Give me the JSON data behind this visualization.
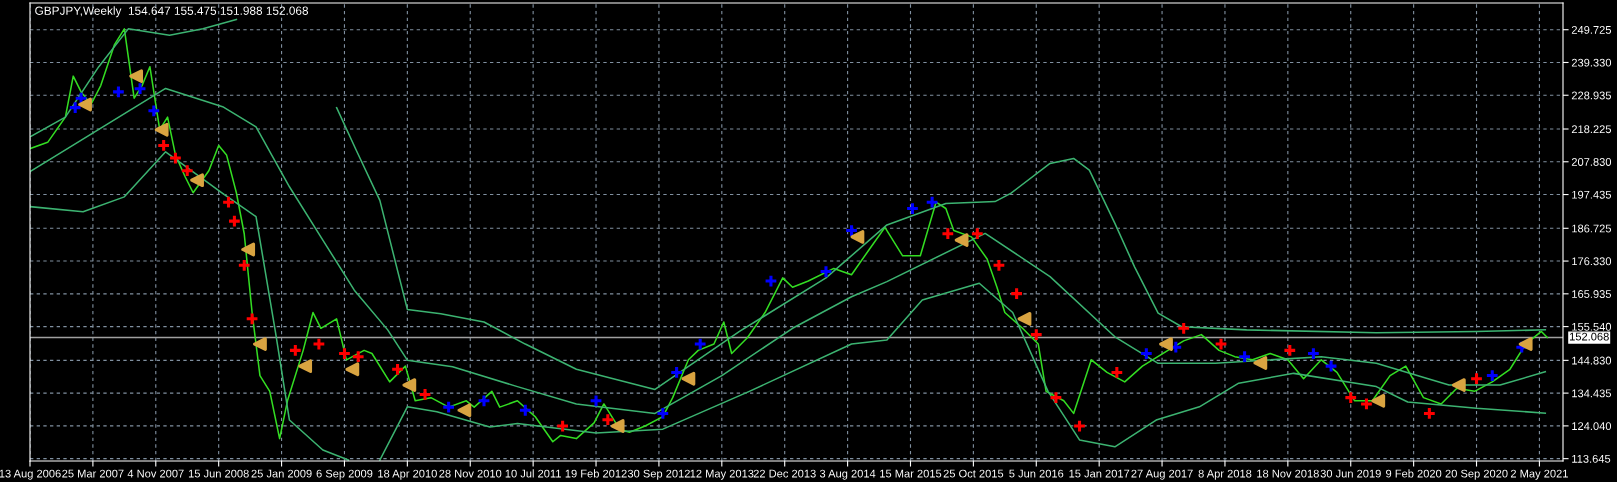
{
  "chart_data": {
    "type": "line",
    "title": "GBPJPY,Weekly  154.647 155.475 151.988 152.068",
    "xlim": [
      "2006-08-13",
      "2021-07-25"
    ],
    "ylim": [
      112.9,
      258.2
    ],
    "xticks": [
      {
        "value": "2006-08-13",
        "label": "13 Aug 2006"
      },
      {
        "value": "2007-03-25",
        "label": "25 Mar 2007"
      },
      {
        "value": "2007-11-04",
        "label": "4 Nov 2007"
      },
      {
        "value": "2008-06-15",
        "label": "15 Jun 2008"
      },
      {
        "value": "2009-01-25",
        "label": "25 Jan 2009"
      },
      {
        "value": "2009-09-06",
        "label": "6 Sep 2009"
      },
      {
        "value": "2010-04-18",
        "label": "18 Apr 2010"
      },
      {
        "value": "2010-11-28",
        "label": "28 Nov 2010"
      },
      {
        "value": "2011-07-10",
        "label": "10 Jul 2011"
      },
      {
        "value": "2012-02-19",
        "label": "19 Feb 2012"
      },
      {
        "value": "2012-09-30",
        "label": "30 Sep 2012"
      },
      {
        "value": "2013-05-12",
        "label": "12 May 2013"
      },
      {
        "value": "2013-12-22",
        "label": "22 Dec 2013"
      },
      {
        "value": "2014-08-03",
        "label": "3 Aug 2014"
      },
      {
        "value": "2015-03-15",
        "label": "15 Mar 2015"
      },
      {
        "value": "2015-10-25",
        "label": "25 Oct 2015"
      },
      {
        "value": "2016-06-05",
        "label": "5 Jun 2016"
      },
      {
        "value": "2017-01-15",
        "label": "15 Jan 2017"
      },
      {
        "value": "2017-08-27",
        "label": "27 Aug 2017"
      },
      {
        "value": "2018-04-08",
        "label": "8 Apr 2018"
      },
      {
        "value": "2018-11-18",
        "label": "18 Nov 2018"
      },
      {
        "value": "2019-06-30",
        "label": "30 Jun 2019"
      },
      {
        "value": "2020-02-09",
        "label": "9 Feb 2020"
      },
      {
        "value": "2020-09-20",
        "label": "20 Sep 2020"
      },
      {
        "value": "2021-05-02",
        "label": "2 May 2021"
      }
    ],
    "yticks": [
      {
        "value": 113.645,
        "label": "113.645"
      },
      {
        "value": 124.04,
        "label": "124.040"
      },
      {
        "value": 134.435,
        "label": "134.435"
      },
      {
        "value": 144.83,
        "label": "144.830"
      },
      {
        "value": 155.54,
        "label": "155.540"
      },
      {
        "value": 165.935,
        "label": "165.935"
      },
      {
        "value": 176.33,
        "label": "176.330"
      },
      {
        "value": 186.725,
        "label": "186.725"
      },
      {
        "value": 197.435,
        "label": "197.435"
      },
      {
        "value": 207.83,
        "label": "207.830"
      },
      {
        "value": 218.225,
        "label": "218.225"
      },
      {
        "value": 228.935,
        "label": "228.935"
      },
      {
        "value": 239.33,
        "label": "239.330"
      },
      {
        "value": 249.725,
        "label": "249.725"
      }
    ],
    "grid": true,
    "ref_lines": [
      {
        "axis": "y",
        "value": 152.068,
        "label": "152.068",
        "color": "#a0a0a0"
      }
    ],
    "series": [
      {
        "color": "#33dd22",
        "x": [
          "2006-08-13",
          "2006-10-15",
          "2006-12-17",
          "2007-01-14",
          "2007-02-11",
          "2007-03-18",
          "2007-04-22",
          "2007-06-10",
          "2007-07-15",
          "2007-08-19",
          "2007-09-16",
          "2007-10-14",
          "2007-11-18",
          "2007-12-16",
          "2008-01-13",
          "2008-02-17",
          "2008-03-16",
          "2008-05-11",
          "2008-06-15",
          "2008-07-13",
          "2008-08-17",
          "2008-09-14",
          "2008-10-12",
          "2008-11-09",
          "2008-12-14",
          "2009-01-18",
          "2009-02-15",
          "2009-04-12",
          "2009-05-17",
          "2009-06-14",
          "2009-08-09",
          "2009-09-13",
          "2009-11-15",
          "2009-12-13",
          "2010-02-14",
          "2010-04-11",
          "2010-05-16",
          "2010-07-11",
          "2010-09-12",
          "2010-11-14",
          "2010-12-12",
          "2011-02-13",
          "2011-03-13",
          "2011-05-15",
          "2011-07-17",
          "2011-09-18",
          "2011-10-16",
          "2011-12-11",
          "2012-02-12",
          "2012-03-18",
          "2012-05-13",
          "2012-06-17",
          "2012-08-12",
          "2012-10-14",
          "2012-11-18",
          "2013-01-13",
          "2013-02-17",
          "2013-04-14",
          "2013-05-19",
          "2013-06-16",
          "2013-08-11",
          "2013-10-13",
          "2013-12-15",
          "2014-01-19",
          "2014-03-16",
          "2014-06-15",
          "2014-08-17",
          "2014-10-19",
          "2014-12-14",
          "2015-02-15",
          "2015-04-19",
          "2015-06-14",
          "2015-07-19",
          "2015-08-16",
          "2015-10-18",
          "2015-12-13",
          "2016-01-17",
          "2016-02-14",
          "2016-04-17",
          "2016-06-12",
          "2016-07-10",
          "2016-09-11",
          "2016-10-16",
          "2016-12-18",
          "2017-02-12",
          "2017-04-16",
          "2017-06-18",
          "2017-09-17",
          "2017-11-12",
          "2018-01-14",
          "2018-03-18",
          "2018-05-13",
          "2018-07-15",
          "2018-09-16",
          "2018-11-18",
          "2019-01-13",
          "2019-03-17",
          "2019-05-12",
          "2019-07-14",
          "2019-09-15",
          "2019-11-17",
          "2020-01-12",
          "2020-03-15",
          "2020-05-17",
          "2020-07-12",
          "2020-09-13",
          "2020-11-15",
          "2021-01-17",
          "2021-03-14",
          "2021-05-09",
          "2021-05-30"
        ],
        "values": [
          212,
          214,
          222,
          235,
          230,
          226,
          232,
          245,
          250,
          228,
          232,
          238,
          218,
          222,
          210,
          203,
          198,
          205,
          213,
          210,
          198,
          185,
          160,
          140,
          135,
          120,
          132,
          148,
          160,
          155,
          158,
          145,
          148,
          147,
          138,
          143,
          132,
          133,
          130,
          132,
          130,
          135,
          130,
          132,
          127,
          119,
          121,
          120,
          125,
          131,
          123,
          122,
          124,
          127,
          133,
          145,
          148,
          150,
          157,
          147,
          152,
          160,
          171,
          168,
          170,
          174,
          172,
          180,
          187,
          178,
          178,
          195,
          193,
          186,
          184,
          177,
          168,
          160,
          155,
          150,
          135,
          132,
          128,
          145,
          141,
          138,
          143,
          148,
          151,
          153,
          148,
          146,
          145,
          147,
          145,
          139,
          145,
          141,
          132,
          132,
          140,
          143,
          133,
          131,
          136,
          135,
          138,
          142,
          150,
          154,
          152.068
        ]
      },
      {
        "color": "#3cb371",
        "x": [
          "2006-08-13",
          "2006-12-17",
          "2007-04-15",
          "2007-07-29",
          "2007-12-23",
          "2008-04-20",
          "2008-08-17",
          "2008-11-02",
          "2009-01-04",
          "2009-03-15",
          "2009-08-09",
          "2009-10-18",
          "2010-01-10",
          "2010-04-18",
          "2010-08-15",
          "2011-01-16",
          "2011-06-12",
          "2011-12-11",
          "2012-09-16",
          "2013-07-14",
          "2014-05-18",
          "2014-12-21",
          "2015-07-19",
          "2016-01-10",
          "2016-03-06",
          "2016-07-24",
          "2016-10-16",
          "2016-12-11",
          "2017-03-12",
          "2017-05-21",
          "2017-08-13",
          "2017-11-05",
          "2018-06-24",
          "2019-09-29",
          "2020-09-20",
          "2021-05-23"
        ],
        "values": [
          215.7,
          222,
          238,
          250,
          248,
          250,
          253,
          null,
          null,
          null,
          225,
          211.5,
          195.6,
          161,
          159.6,
          157,
          150,
          142,
          135.6,
          154,
          171,
          187.8,
          194.6,
          195.2,
          197.8,
          207.3,
          208.9,
          205.2,
          188.3,
          174.5,
          159.8,
          155.5,
          154.5,
          153.6,
          154,
          154.5
        ]
      },
      {
        "color": "#3cb371",
        "x": [
          "2006-08-13",
          "2007-12-09",
          "2008-06-29",
          "2008-10-26",
          "2009-02-22",
          "2009-06-21",
          "2009-10-11",
          "2010-02-07",
          "2010-04-18",
          "2010-09-26",
          "2011-05-15",
          "2011-12-11",
          "2012-09-16",
          "2013-05-12",
          "2014-01-19",
          "2014-08-17",
          "2014-12-21",
          "2015-12-06",
          "2016-07-24",
          "2017-03-12",
          "2017-08-13",
          "2018-03-04",
          "2019-03-17",
          "2019-09-29",
          "2020-06-14",
          "2020-12-13",
          "2021-05-23"
        ],
        "values": [
          204.7,
          231.1,
          225.3,
          218.9,
          199.9,
          183.0,
          167.1,
          154.5,
          144.9,
          142.8,
          136.5,
          131,
          128,
          140,
          155,
          165,
          169.8,
          185.1,
          171.4,
          152.3,
          143.9,
          143.9,
          146.0,
          143.9,
          137,
          137,
          141.2
        ]
      },
      {
        "color": "#3cb371",
        "x": [
          "2006-08-13",
          "2007-02-18",
          "2007-07-15",
          "2007-12-09",
          "2008-06-29",
          "2008-10-26",
          "2009-01-04",
          "2009-02-22",
          "2009-06-21",
          "2009-09-20",
          "2009-11-15",
          "2010-01-10",
          "2010-04-18",
          "2010-08-01",
          "2011-02-06",
          "2011-05-15",
          "2012-02-19",
          "2012-10-14",
          "2013-08-18",
          "2014-08-17",
          "2014-12-21",
          "2015-04-26",
          "2015-11-15",
          "2016-03-13",
          "2016-07-17",
          "2016-11-06",
          "2017-03-12",
          "2017-08-06",
          "2018-01-07",
          "2018-05-27",
          "2018-12-09",
          "2019-09-29",
          "2020-01-19",
          "2020-09-20",
          "2021-05-23"
        ],
        "values": [
          193.6,
          192.0,
          196.7,
          211,
          197.8,
          190.4,
          153.4,
          125.9,
          116.4,
          113.2,
          null,
          113.2,
          130.1,
          128.5,
          123.7,
          124.8,
          121.8,
          123,
          135,
          150,
          151.3,
          164,
          169.3,
          160,
          135,
          119.6,
          117.4,
          125.9,
          130.1,
          137.6,
          140.7,
          136.5,
          131.6,
          129.6,
          128.1
        ]
      },
      {
        "type": "scatter",
        "marker": "cross",
        "color": "#0000ff",
        "x": [
          "2007-01-21",
          "2007-02-11",
          "2007-06-24",
          "2007-09-09",
          "2007-10-28",
          "2010-09-12",
          "2011-01-16",
          "2011-06-12",
          "2012-02-19",
          "2012-10-14",
          "2012-12-02",
          "2013-02-24",
          "2013-11-03",
          "2014-05-18",
          "2014-08-17",
          "2015-03-22",
          "2015-05-31",
          "2017-07-02",
          "2017-10-15",
          "2018-06-17",
          "2019-02-17",
          "2019-04-21",
          "2020-11-15",
          "2021-02-28"
        ],
        "values": [
          225,
          228,
          230,
          231,
          224,
          130,
          132,
          129,
          132,
          128,
          141,
          150,
          170,
          173,
          186,
          193,
          195,
          147,
          149,
          146,
          147,
          143,
          140,
          149
        ]
      },
      {
        "type": "scatter",
        "marker": "cross",
        "color": "#ff0000",
        "x": [
          "2007-12-02",
          "2008-01-13",
          "2008-02-24",
          "2008-07-20",
          "2008-08-10",
          "2008-09-14",
          "2008-10-12",
          "2009-03-15",
          "2009-06-07",
          "2009-09-06",
          "2009-10-25",
          "2010-03-14",
          "2010-06-20",
          "2011-10-23",
          "2012-04-01",
          "2015-07-26",
          "2015-11-08",
          "2016-01-24",
          "2016-03-27",
          "2016-06-05",
          "2016-08-14",
          "2016-11-06",
          "2017-03-19",
          "2017-11-12",
          "2018-03-25",
          "2018-11-25",
          "2019-06-30",
          "2019-08-25",
          "2020-04-05",
          "2020-09-20"
        ],
        "values": [
          213,
          209,
          205,
          195,
          189,
          175,
          158,
          148,
          150,
          147,
          146,
          142,
          134,
          124,
          126,
          185,
          185,
          175,
          166,
          153,
          133,
          124,
          141,
          155,
          150,
          148,
          133,
          131,
          128,
          139
        ]
      },
      {
        "type": "scatter",
        "marker": "triangle",
        "color": "#d9a441",
        "x": [
          "2007-02-25",
          "2007-08-26",
          "2007-11-25",
          "2008-03-30",
          "2008-09-28",
          "2008-11-09",
          "2009-04-19",
          "2009-10-04",
          "2010-04-25",
          "2010-11-07",
          "2012-05-06",
          "2013-01-13",
          "2014-09-07",
          "2015-09-13",
          "2016-04-24",
          "2017-09-10",
          "2018-08-12",
          "2019-10-06",
          "2020-07-19",
          "2021-03-14"
        ],
        "values": [
          226,
          235,
          218,
          202,
          180,
          150,
          143,
          142,
          137,
          129,
          124,
          139,
          184,
          183,
          158,
          150,
          144,
          132,
          137,
          150
        ]
      }
    ]
  }
}
